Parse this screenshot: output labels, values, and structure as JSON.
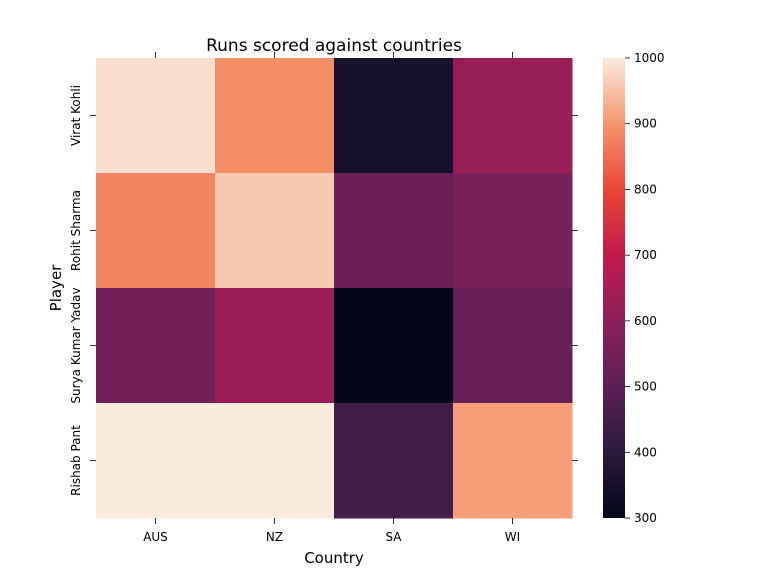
{
  "chart_data": {
    "type": "heatmap",
    "title": "Runs scored against countries",
    "xlabel": "Country",
    "ylabel": "Player",
    "x_categories": [
      "AUS",
      "NZ",
      "SA",
      "WI"
    ],
    "y_categories": [
      "Virat Kohli",
      "Rohit Sharma",
      "Surya Kumar Yadav",
      "Rishab Pant"
    ],
    "values": [
      [
        985,
        890,
        350,
        620
      ],
      [
        880,
        960,
        530,
        560
      ],
      [
        545,
        630,
        300,
        520
      ],
      [
        1000,
        1000,
        450,
        910
      ]
    ],
    "colorbar": {
      "min": 300,
      "max": 1000,
      "ticks": [
        300,
        400,
        500,
        600,
        700,
        800,
        900,
        1000
      ],
      "colormap": "rocket"
    },
    "grid": false
  }
}
